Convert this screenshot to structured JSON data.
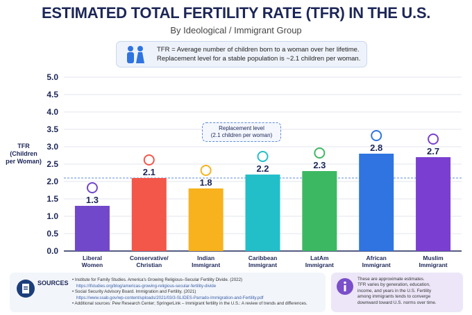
{
  "chart_data": {
    "type": "bar",
    "title": "ESTIMATED TOTAL FERTILITY RATE (TFR) IN THE U.S.",
    "subtitle": "By Ideological / Immigrant Group",
    "info": [
      "TFR = Average number of children born to a woman over her lifetime.",
      "Replacement level for a stable population is ~2.1 children per woman."
    ],
    "ylabel": "TFR\n(Children\nper Woman)",
    "categories": [
      "Liberal\nWomen",
      "Conservative/\nChristian",
      "Indian\nImmigrant",
      "Caribbean\nImmigrant",
      "LatAm\nImmigrant",
      "African\nImmigrant",
      "Muslim\nImmigrant"
    ],
    "values": [
      1.3,
      2.1,
      1.8,
      2.2,
      2.3,
      2.8,
      2.7
    ],
    "colors": [
      "#7148c9",
      "#f2574a",
      "#f7b21e",
      "#22bfc9",
      "#3db862",
      "#2f74e0",
      "#7a3fd0"
    ],
    "ylim": [
      0,
      5
    ],
    "yticks": [
      {
        "value": 0,
        "label": "0.0"
      },
      {
        "value": 0.5,
        "label": "0.5"
      },
      {
        "value": 1,
        "label": "1.0"
      },
      {
        "value": 1.5,
        "label": "1.5"
      },
      {
        "value": 2,
        "label": "2.0"
      },
      {
        "value": 2.5,
        "label": "2.5"
      },
      {
        "value": 3,
        "label": "3.0"
      },
      {
        "value": 3.5,
        "label": "3.5"
      },
      {
        "value": 4,
        "label": "4.0"
      },
      {
        "value": 4.5,
        "label": "4.5"
      },
      {
        "value": 5,
        "label": "5.0"
      }
    ],
    "grid": true,
    "reference": {
      "value": 2.1,
      "label": "Replacement level\n(2.1 children per woman)"
    }
  },
  "sources": {
    "heading": "SOURCES",
    "items": [
      [
        "Institute for Family Studies. America's Growing Religious–Secular Fertility Divide. (2022)",
        "https://ifstudies.org/blog/americas-growing-religious-secular-fertility-divide"
      ],
      [
        "Social Security Advisory Board. Immigration and Fertility. (2021)",
        "https://www.ssab.gov/wp-content/uploads/2021/03/3-SLIDES-Parrado-Immigration-and-Fertility.pdf"
      ],
      [
        "Additional sources: Pew Research Center; SpringerLink – Immigrant fertility in the U.S.: A review of trends and differences."
      ]
    ]
  },
  "note": "These are approximate estimates.\nTFR varies by generation, education,\nincome, and years in the U.S. Fertility\namong immigrants tends to converge\ndownward toward U.S. norms over time."
}
